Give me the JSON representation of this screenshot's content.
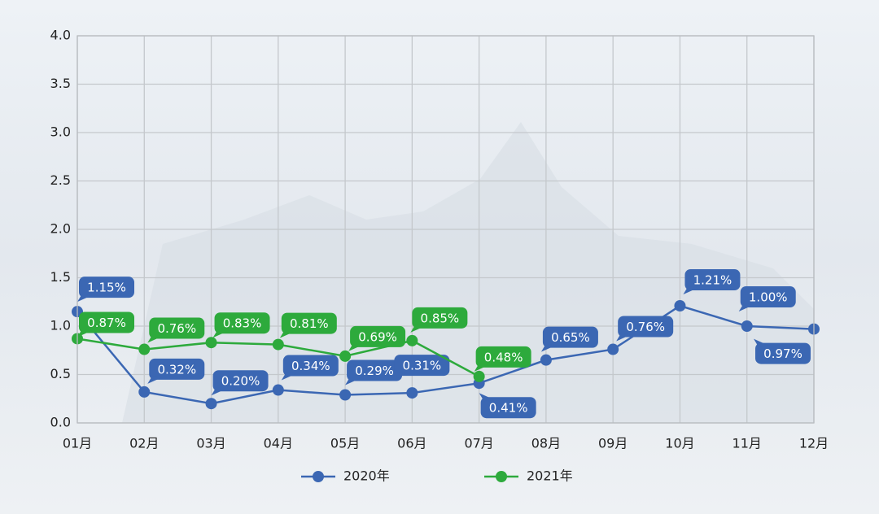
{
  "chart_data": {
    "type": "line",
    "categories": [
      "01月",
      "02月",
      "03月",
      "04月",
      "05月",
      "06月",
      "07月",
      "08月",
      "09月",
      "10月",
      "11月",
      "12月"
    ],
    "series": [
      {
        "name": "2020年",
        "color": "#3b67b3",
        "values": [
          1.15,
          0.32,
          0.2,
          0.34,
          0.29,
          0.31,
          0.41,
          0.65,
          0.76,
          1.21,
          1.0,
          0.97
        ],
        "value_labels": [
          "1.15%",
          "0.32%",
          "0.20%",
          "0.34%",
          "0.29%",
          "0.31%",
          "0.41%",
          "0.65%",
          "0.76%",
          "1.21%",
          "1.00%",
          "0.97%"
        ]
      },
      {
        "name": "2021年",
        "color": "#2daa3c",
        "values": [
          0.87,
          0.76,
          0.83,
          0.81,
          0.69,
          0.85,
          0.48,
          null,
          null,
          null,
          null,
          null
        ],
        "value_labels": [
          "0.87%",
          "0.76%",
          "0.83%",
          "0.81%",
          "0.69%",
          "0.85%",
          "0.48%",
          null,
          null,
          null,
          null,
          null
        ]
      }
    ],
    "ylim": [
      0,
      4
    ],
    "yticks": [
      {
        "value": 0,
        "label": "0.0"
      },
      0.5,
      {
        "value": 1,
        "label": "1.0"
      },
      1.5,
      {
        "value": 2,
        "label": "2.0"
      },
      2.5,
      {
        "value": 3,
        "label": "3.0"
      },
      3.5,
      {
        "value": 4,
        "label": "4.0"
      }
    ],
    "grid": true,
    "legend": "bottom"
  }
}
